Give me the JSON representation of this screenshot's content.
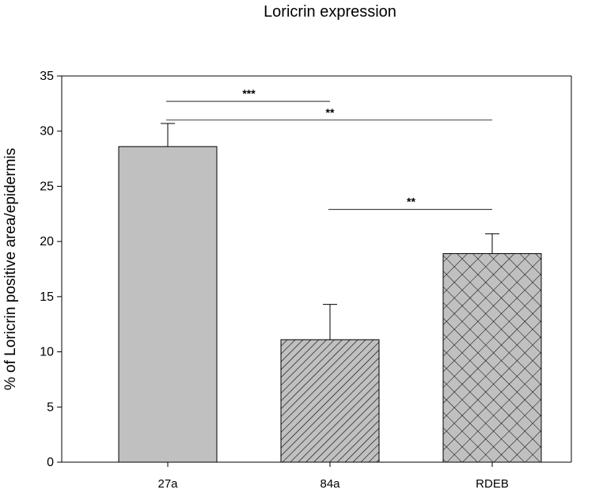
{
  "chart_data": {
    "type": "bar",
    "title": "Loricrin expression",
    "xlabel": "",
    "ylabel": "% of Loricrin positive area/epidermis",
    "ylim": [
      0,
      35
    ],
    "yticks": [
      0,
      5,
      10,
      15,
      20,
      25,
      30,
      35
    ],
    "categories": [
      "27a",
      "84a",
      "RDEB"
    ],
    "values": [
      28.6,
      11.1,
      18.9
    ],
    "errors": [
      2.1,
      3.2,
      1.8
    ],
    "bar_fill": "#c0c0c0",
    "patterns": [
      "solid",
      "diagonal-hatch",
      "crosshatch"
    ],
    "grid": false,
    "legend": "none",
    "significance": [
      {
        "from": "27a",
        "to": "84a",
        "label": "***",
        "y": 32.7
      },
      {
        "from": "27a",
        "to": "RDEB",
        "label": "**",
        "y": 31.0
      },
      {
        "from": "84a",
        "to": "RDEB",
        "label": "**",
        "y": 22.9
      }
    ]
  }
}
